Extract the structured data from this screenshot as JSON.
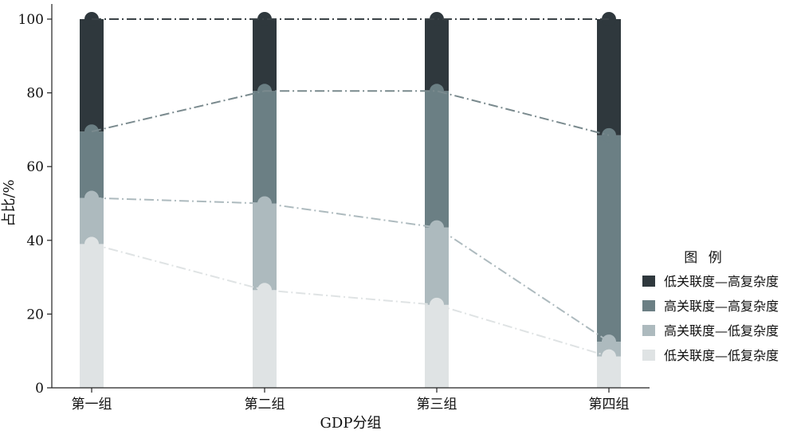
{
  "chart_data": {
    "type": "bar",
    "subtype": "stacked-column-with-connecting-lines",
    "categories": [
      "第一组",
      "第二组",
      "第三组",
      "第四组"
    ],
    "xlabel": "GDP分组",
    "ylabel": "占比/%",
    "ylim": [
      0,
      100
    ],
    "yticks": [
      0,
      20,
      40,
      60,
      80,
      100
    ],
    "grid": false,
    "legend": {
      "title": "图 例",
      "placement": "right"
    },
    "series": [
      {
        "name": "低关联度—低复杂度",
        "values": [
          39,
          26.5,
          22.5,
          8.5
        ],
        "color": "#dfe3e4",
        "line_color": "#dfe3e4"
      },
      {
        "name": "高关联度—低复杂度",
        "values": [
          12.5,
          23.5,
          21,
          4
        ],
        "color": "#adbabe",
        "line_color": "#adbabe"
      },
      {
        "name": "高关联度—高复杂度",
        "values": [
          18,
          30.5,
          37,
          56
        ],
        "color": "#6b7f84",
        "line_color": "#7a8a8e"
      },
      {
        "name": "低关联度—高复杂度",
        "values": [
          30.5,
          19.5,
          19.5,
          31.5
        ],
        "color": "#2f383d",
        "line_color": "#3a4246"
      }
    ],
    "legend_order": [
      "低关联度—高复杂度",
      "高关联度—高复杂度",
      "高关联度—低复杂度",
      "低关联度—低复杂度"
    ]
  }
}
